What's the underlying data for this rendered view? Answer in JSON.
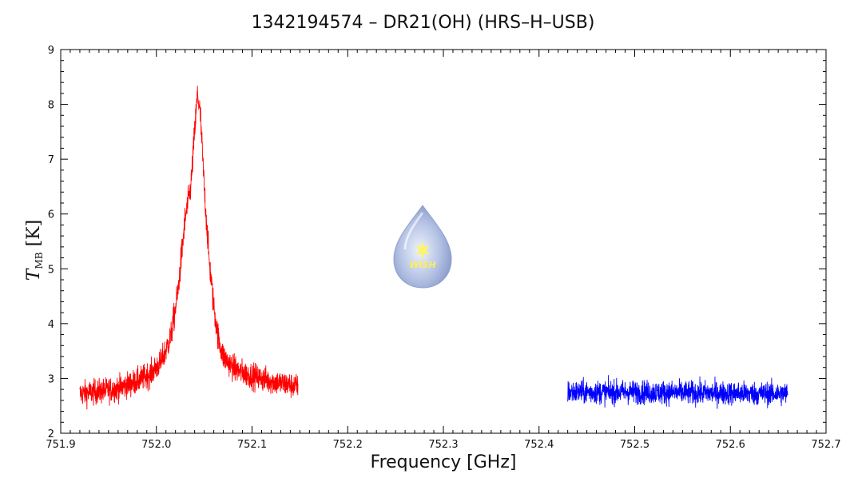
{
  "title": "1342194574 – DR21(OH) (HRS–H–USB)",
  "watermark": {
    "text": "WISH",
    "colors": {
      "drop": "#a7b9df",
      "text": "#ffee55"
    }
  },
  "chart_data": {
    "type": "line",
    "title": "1342194574 – DR21(OH) (HRS–H–USB)",
    "xlabel": "Frequency [GHz]",
    "ylabel_symbol": "T",
    "ylabel_subscript": "MB",
    "ylabel_unit": "[K]",
    "xlim": [
      751.9,
      752.7
    ],
    "ylim": [
      2,
      9
    ],
    "xticks": [
      "751.9",
      "752.0",
      "752.1",
      "752.2",
      "752.3",
      "752.4",
      "752.5",
      "752.6",
      "752.7"
    ],
    "yticks": [
      "2",
      "3",
      "4",
      "5",
      "6",
      "7",
      "8",
      "9"
    ],
    "grid": false,
    "legend": "none",
    "series": [
      {
        "color": "#ff0000",
        "x_range": [
          751.92,
          752.148
        ],
        "noise": 0.15,
        "x": [
          751.92,
          751.94,
          751.96,
          751.98,
          751.995,
          752.005,
          752.015,
          752.022,
          752.03,
          752.036,
          752.04,
          752.043,
          752.046,
          752.05,
          752.055,
          752.06,
          752.065,
          752.07,
          752.08,
          752.09,
          752.1,
          752.12,
          752.148
        ],
        "y": [
          2.72,
          2.76,
          2.82,
          2.95,
          3.1,
          3.3,
          3.75,
          4.5,
          5.9,
          6.5,
          7.5,
          8.2,
          7.8,
          6.5,
          5.2,
          4.3,
          3.7,
          3.4,
          3.2,
          3.1,
          3.05,
          2.95,
          2.85
        ]
      },
      {
        "color": "#0000ff",
        "x_range": [
          752.43,
          752.66
        ],
        "noise": 0.14,
        "x": [
          752.43,
          752.5,
          752.6,
          752.66
        ],
        "y": [
          2.75,
          2.75,
          2.73,
          2.72
        ]
      }
    ]
  }
}
